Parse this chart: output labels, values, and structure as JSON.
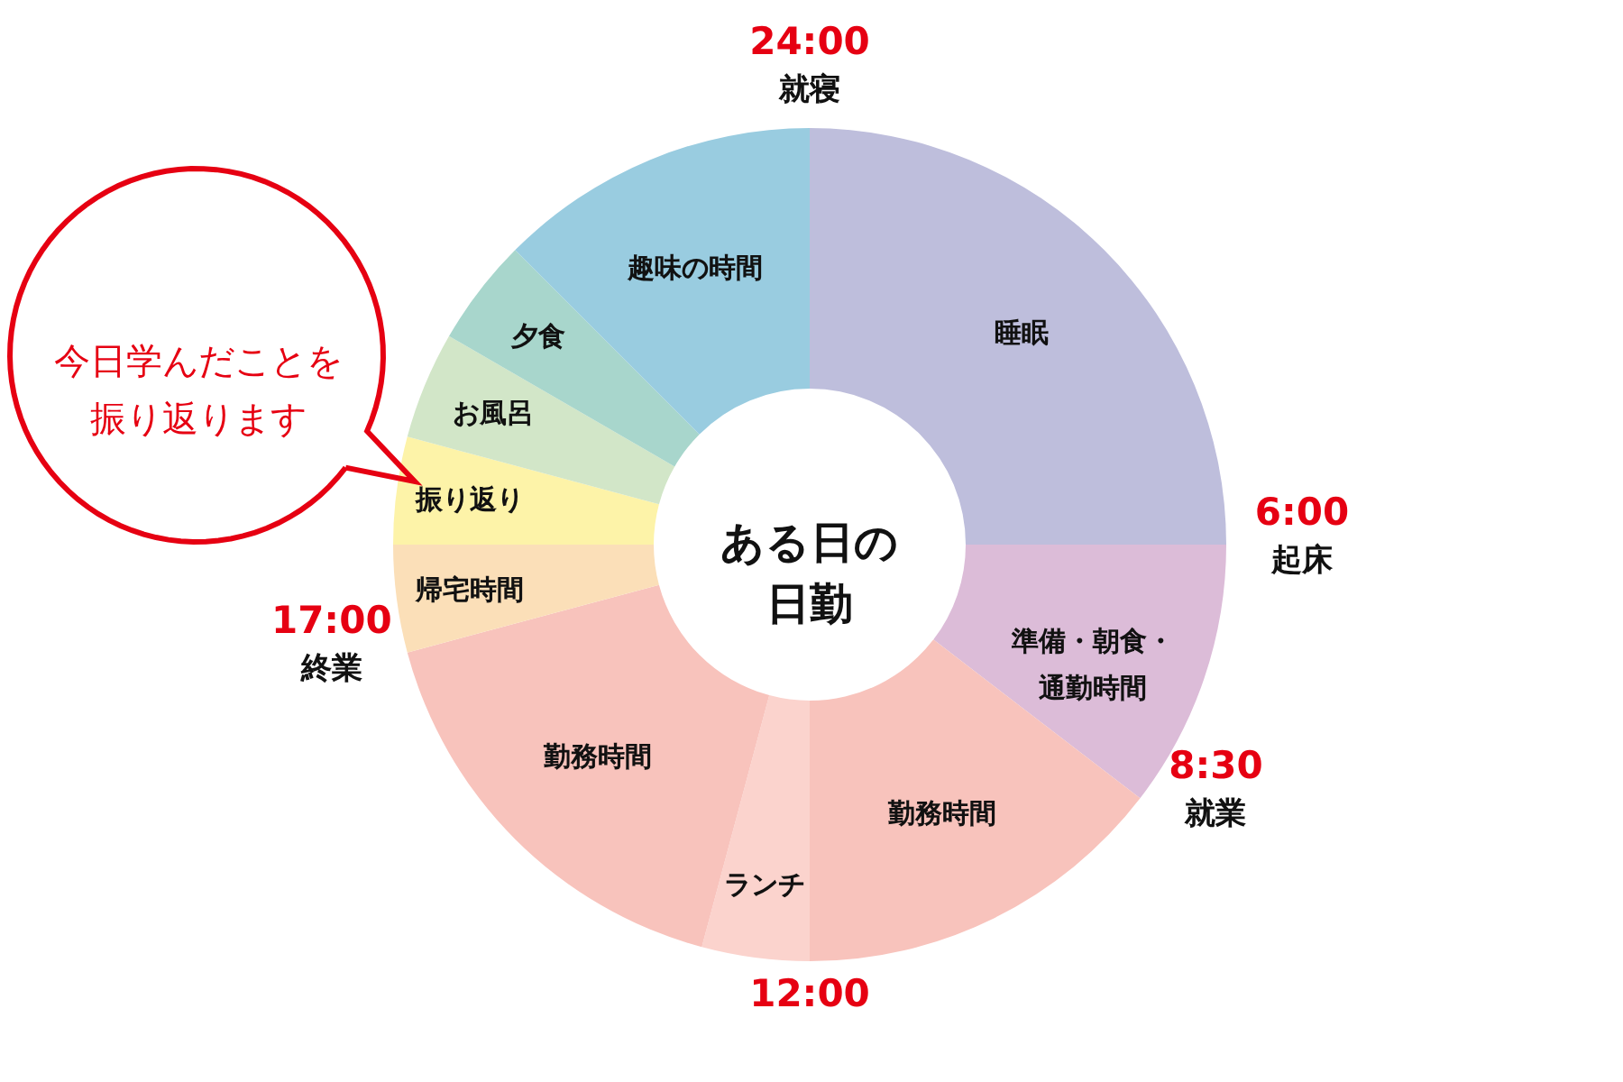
{
  "chart_data": {
    "type": "donut",
    "title": "ある日の日勤",
    "categories": [
      "睡眠",
      "準備・朝食・通勤時間",
      "勤務時間",
      "ランチ",
      "勤務時間",
      "帰宅時間",
      "振り返り",
      "お風呂",
      "夕食",
      "趣味の時間"
    ],
    "values": [
      25,
      10.42,
      14.58,
      4.17,
      16.66,
      4.17,
      4.17,
      4.17,
      4.16,
      12.5
    ],
    "colors": [
      "#bebedc",
      "#dcbcd8",
      "#f8c3bc",
      "#fbd3cd",
      "#f8c3bc",
      "#fbdfb8",
      "#fdf3a8",
      "#d2e6c8",
      "#a8d6cc",
      "#99cce0"
    ],
    "annotations": [
      "24:00\n就寝",
      "6:00\n起床",
      "8:30\n就業",
      "12:00",
      "17:00\n終業",
      "今日学んだことを振り返ります"
    ]
  }
}
